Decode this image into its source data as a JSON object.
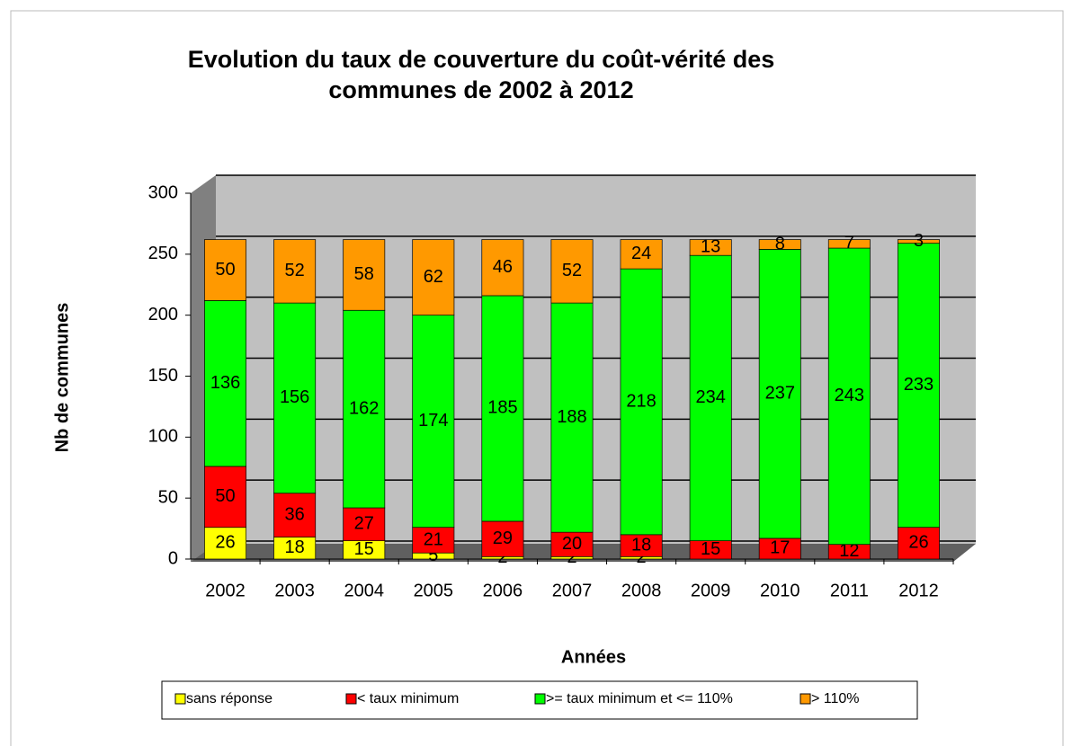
{
  "chart_data": {
    "type": "stacked-bar",
    "title": "Evolution du taux de couverture du coût-vérité des",
    "subtitle": "communes de 2002 à 2012",
    "x_label": "Années",
    "y_label": "Nb de communes",
    "categories": [
      "2002",
      "2003",
      "2004",
      "2005",
      "2006",
      "2007",
      "2008",
      "2009",
      "2010",
      "2011",
      "2012"
    ],
    "series": [
      {
        "name": "sans réponse",
        "color": "#ffff00",
        "values": [
          26,
          18,
          15,
          5,
          2,
          2,
          2,
          null,
          null,
          null,
          null
        ]
      },
      {
        "name": "< taux minimum",
        "color": "#ff0000",
        "values": [
          50,
          36,
          27,
          21,
          29,
          20,
          18,
          15,
          17,
          12,
          26
        ]
      },
      {
        "name": ">= taux minimum et <= 110%",
        "color": "#00ff00",
        "values": [
          136,
          156,
          162,
          174,
          185,
          188,
          218,
          234,
          237,
          243,
          233
        ]
      },
      {
        "name": "> 110%",
        "color": "#ff9900",
        "values": [
          50,
          52,
          58,
          62,
          46,
          52,
          24,
          13,
          8,
          7,
          3
        ]
      }
    ],
    "ylim": [
      0,
      300
    ],
    "yticks": [
      0,
      50,
      100,
      150,
      200,
      250,
      300
    ],
    "grid": true,
    "legend": "bottom"
  }
}
